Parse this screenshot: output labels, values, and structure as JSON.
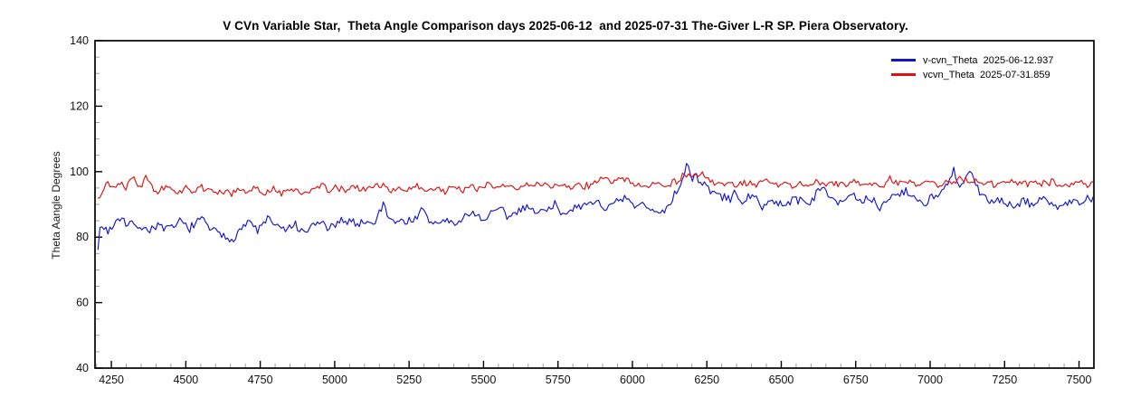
{
  "chart_data": {
    "type": "line",
    "title": "V CVn Variable Star,  Theta Angle Comparison days 2025-06-12  and 2025-07-31 The-Giver L-R SP. Piera Observatory.",
    "xlabel": "",
    "ylabel": "Theta Aangle Degrees",
    "xlim": [
      4195,
      7550
    ],
    "ylim": [
      40,
      140
    ],
    "x_ticks": [
      4250,
      4500,
      4750,
      5000,
      5250,
      5500,
      5750,
      6000,
      6250,
      6500,
      6750,
      7000,
      7250,
      7500
    ],
    "x_minor_step": 50,
    "y_ticks": [
      40,
      60,
      80,
      100,
      120,
      140
    ],
    "y_minor_step": 5,
    "grid": false,
    "legend_position": "top-right-inside",
    "axis_color": "#000000",
    "minor_tick_color": "#a0a0a0",
    "tick_label_color": "#111111",
    "series": [
      {
        "name": "v-cvn_Theta  2025-06-12.937",
        "color": "#1414cc",
        "x_start": 4205,
        "x_end": 7550,
        "x_step": 6.7,
        "noise_amplitude": 1.9,
        "seed": 7,
        "trend_anchors": [
          [
            4205,
            78
          ],
          [
            4215,
            83.5
          ],
          [
            4240,
            82
          ],
          [
            4265,
            84.5
          ],
          [
            4285,
            87
          ],
          [
            4300,
            83
          ],
          [
            4330,
            84.5
          ],
          [
            4360,
            82
          ],
          [
            4400,
            83.5
          ],
          [
            4440,
            82
          ],
          [
            4480,
            84.5
          ],
          [
            4520,
            83
          ],
          [
            4555,
            85.5
          ],
          [
            4590,
            82
          ],
          [
            4625,
            80
          ],
          [
            4655,
            79.5
          ],
          [
            4685,
            83
          ],
          [
            4715,
            84.5
          ],
          [
            4745,
            82
          ],
          [
            4775,
            86
          ],
          [
            4805,
            83
          ],
          [
            4835,
            82
          ],
          [
            4865,
            84
          ],
          [
            4895,
            80.5
          ],
          [
            4925,
            83.5
          ],
          [
            4955,
            84.5
          ],
          [
            4985,
            82.5
          ],
          [
            5015,
            84
          ],
          [
            5045,
            85.5
          ],
          [
            5075,
            84
          ],
          [
            5105,
            85
          ],
          [
            5135,
            84
          ],
          [
            5165,
            91
          ],
          [
            5180,
            86
          ],
          [
            5210,
            85
          ],
          [
            5240,
            84.5
          ],
          [
            5270,
            86
          ],
          [
            5295,
            88
          ],
          [
            5315,
            85
          ],
          [
            5345,
            84
          ],
          [
            5375,
            85.5
          ],
          [
            5405,
            83.5
          ],
          [
            5435,
            86
          ],
          [
            5465,
            88
          ],
          [
            5495,
            85
          ],
          [
            5525,
            87
          ],
          [
            5555,
            88.5
          ],
          [
            5585,
            86
          ],
          [
            5615,
            88
          ],
          [
            5645,
            90
          ],
          [
            5675,
            87
          ],
          [
            5705,
            88.5
          ],
          [
            5735,
            90
          ],
          [
            5765,
            87.5
          ],
          [
            5795,
            89
          ],
          [
            5825,
            88
          ],
          [
            5855,
            90.5
          ],
          [
            5885,
            91
          ],
          [
            5915,
            88.5
          ],
          [
            5945,
            90
          ],
          [
            5975,
            92
          ],
          [
            6005,
            89
          ],
          [
            6035,
            90
          ],
          [
            6065,
            88
          ],
          [
            6095,
            87.5
          ],
          [
            6125,
            90
          ],
          [
            6155,
            95
          ],
          [
            6170,
            99
          ],
          [
            6185,
            102
          ],
          [
            6200,
            98
          ],
          [
            6215,
            99.5
          ],
          [
            6230,
            96
          ],
          [
            6255,
            95
          ],
          [
            6285,
            93
          ],
          [
            6315,
            91.5
          ],
          [
            6345,
            93
          ],
          [
            6375,
            91
          ],
          [
            6405,
            92
          ],
          [
            6435,
            90
          ],
          [
            6465,
            91
          ],
          [
            6495,
            89.5
          ],
          [
            6525,
            91
          ],
          [
            6555,
            92
          ],
          [
            6585,
            90
          ],
          [
            6615,
            93
          ],
          [
            6645,
            95
          ],
          [
            6675,
            92
          ],
          [
            6705,
            91
          ],
          [
            6735,
            93
          ],
          [
            6765,
            90
          ],
          [
            6795,
            92
          ],
          [
            6825,
            89
          ],
          [
            6855,
            91
          ],
          [
            6885,
            93.5
          ],
          [
            6915,
            94
          ],
          [
            6945,
            92
          ],
          [
            6975,
            90.5
          ],
          [
            7005,
            92
          ],
          [
            7035,
            93
          ],
          [
            7060,
            96
          ],
          [
            7080,
            100
          ],
          [
            7095,
            95
          ],
          [
            7115,
            97
          ],
          [
            7130,
            101
          ],
          [
            7150,
            96
          ],
          [
            7170,
            93
          ],
          [
            7200,
            91
          ],
          [
            7230,
            92
          ],
          [
            7260,
            90
          ],
          [
            7290,
            89
          ],
          [
            7320,
            91
          ],
          [
            7350,
            90
          ],
          [
            7380,
            92
          ],
          [
            7410,
            90
          ],
          [
            7440,
            89.5
          ],
          [
            7470,
            91
          ],
          [
            7500,
            90
          ],
          [
            7525,
            91
          ],
          [
            7550,
            92
          ]
        ]
      },
      {
        "name": "vcvn_Theta  2025-07-31.859",
        "color": "#dd1111",
        "x_start": 4205,
        "x_end": 7550,
        "x_step": 6.7,
        "noise_amplitude": 1.35,
        "seed": 13,
        "trend_anchors": [
          [
            4205,
            92
          ],
          [
            4220,
            95
          ],
          [
            4240,
            96.5
          ],
          [
            4260,
            95
          ],
          [
            4280,
            97
          ],
          [
            4300,
            95.5
          ],
          [
            4322,
            99
          ],
          [
            4338,
            96.5
          ],
          [
            4352,
            96
          ],
          [
            4368,
            99.5
          ],
          [
            4385,
            95
          ],
          [
            4405,
            94
          ],
          [
            4435,
            95
          ],
          [
            4465,
            93.5
          ],
          [
            4495,
            95
          ],
          [
            4525,
            94
          ],
          [
            4555,
            95.5
          ],
          [
            4585,
            93.5
          ],
          [
            4615,
            94.5
          ],
          [
            4645,
            93
          ],
          [
            4675,
            94.5
          ],
          [
            4705,
            93.5
          ],
          [
            4735,
            95
          ],
          [
            4765,
            93
          ],
          [
            4795,
            94.5
          ],
          [
            4825,
            93.5
          ],
          [
            4855,
            95
          ],
          [
            4885,
            93
          ],
          [
            4915,
            94.5
          ],
          [
            4945,
            96
          ],
          [
            4975,
            94.5
          ],
          [
            5005,
            95
          ],
          [
            5035,
            94
          ],
          [
            5065,
            95.5
          ],
          [
            5095,
            94.5
          ],
          [
            5125,
            95.5
          ],
          [
            5155,
            96
          ],
          [
            5185,
            94.5
          ],
          [
            5215,
            95
          ],
          [
            5245,
            94
          ],
          [
            5275,
            95.5
          ],
          [
            5305,
            94.5
          ],
          [
            5335,
            95
          ],
          [
            5365,
            94
          ],
          [
            5395,
            95.5
          ],
          [
            5425,
            94.5
          ],
          [
            5455,
            95.5
          ],
          [
            5485,
            94.5
          ],
          [
            5515,
            96
          ],
          [
            5545,
            95
          ],
          [
            5575,
            96
          ],
          [
            5605,
            95
          ],
          [
            5635,
            96
          ],
          [
            5665,
            95.5
          ],
          [
            5695,
            96.5
          ],
          [
            5725,
            95
          ],
          [
            5755,
            96.5
          ],
          [
            5785,
            95.5
          ],
          [
            5815,
            96
          ],
          [
            5845,
            95.5
          ],
          [
            5875,
            97
          ],
          [
            5905,
            98
          ],
          [
            5935,
            97
          ],
          [
            5965,
            98
          ],
          [
            5995,
            96.5
          ],
          [
            6025,
            96
          ],
          [
            6055,
            95.5
          ],
          [
            6085,
            96.5
          ],
          [
            6115,
            96
          ],
          [
            6145,
            97
          ],
          [
            6175,
            99
          ],
          [
            6205,
            98.5
          ],
          [
            6235,
            99
          ],
          [
            6265,
            97
          ],
          [
            6295,
            96
          ],
          [
            6325,
            96.5
          ],
          [
            6355,
            95.5
          ],
          [
            6385,
            96.5
          ],
          [
            6415,
            96
          ],
          [
            6445,
            97
          ],
          [
            6475,
            96
          ],
          [
            6505,
            96.5
          ],
          [
            6535,
            95.5
          ],
          [
            6565,
            96.5
          ],
          [
            6595,
            96
          ],
          [
            6625,
            97
          ],
          [
            6655,
            96
          ],
          [
            6685,
            96.5
          ],
          [
            6715,
            95.5
          ],
          [
            6745,
            97
          ],
          [
            6775,
            96
          ],
          [
            6805,
            96.5
          ],
          [
            6835,
            95.5
          ],
          [
            6865,
            97.5
          ],
          [
            6895,
            96.5
          ],
          [
            6925,
            97
          ],
          [
            6955,
            96
          ],
          [
            6985,
            97
          ],
          [
            7015,
            96.5
          ],
          [
            7045,
            96
          ],
          [
            7075,
            97
          ],
          [
            7105,
            98
          ],
          [
            7135,
            97
          ],
          [
            7165,
            96.5
          ],
          [
            7195,
            97
          ],
          [
            7225,
            96
          ],
          [
            7255,
            97
          ],
          [
            7285,
            96.5
          ],
          [
            7315,
            96
          ],
          [
            7345,
            97
          ],
          [
            7375,
            96
          ],
          [
            7405,
            97
          ],
          [
            7435,
            96.5
          ],
          [
            7465,
            96
          ],
          [
            7495,
            97
          ],
          [
            7525,
            96
          ],
          [
            7550,
            96.5
          ]
        ]
      }
    ]
  }
}
